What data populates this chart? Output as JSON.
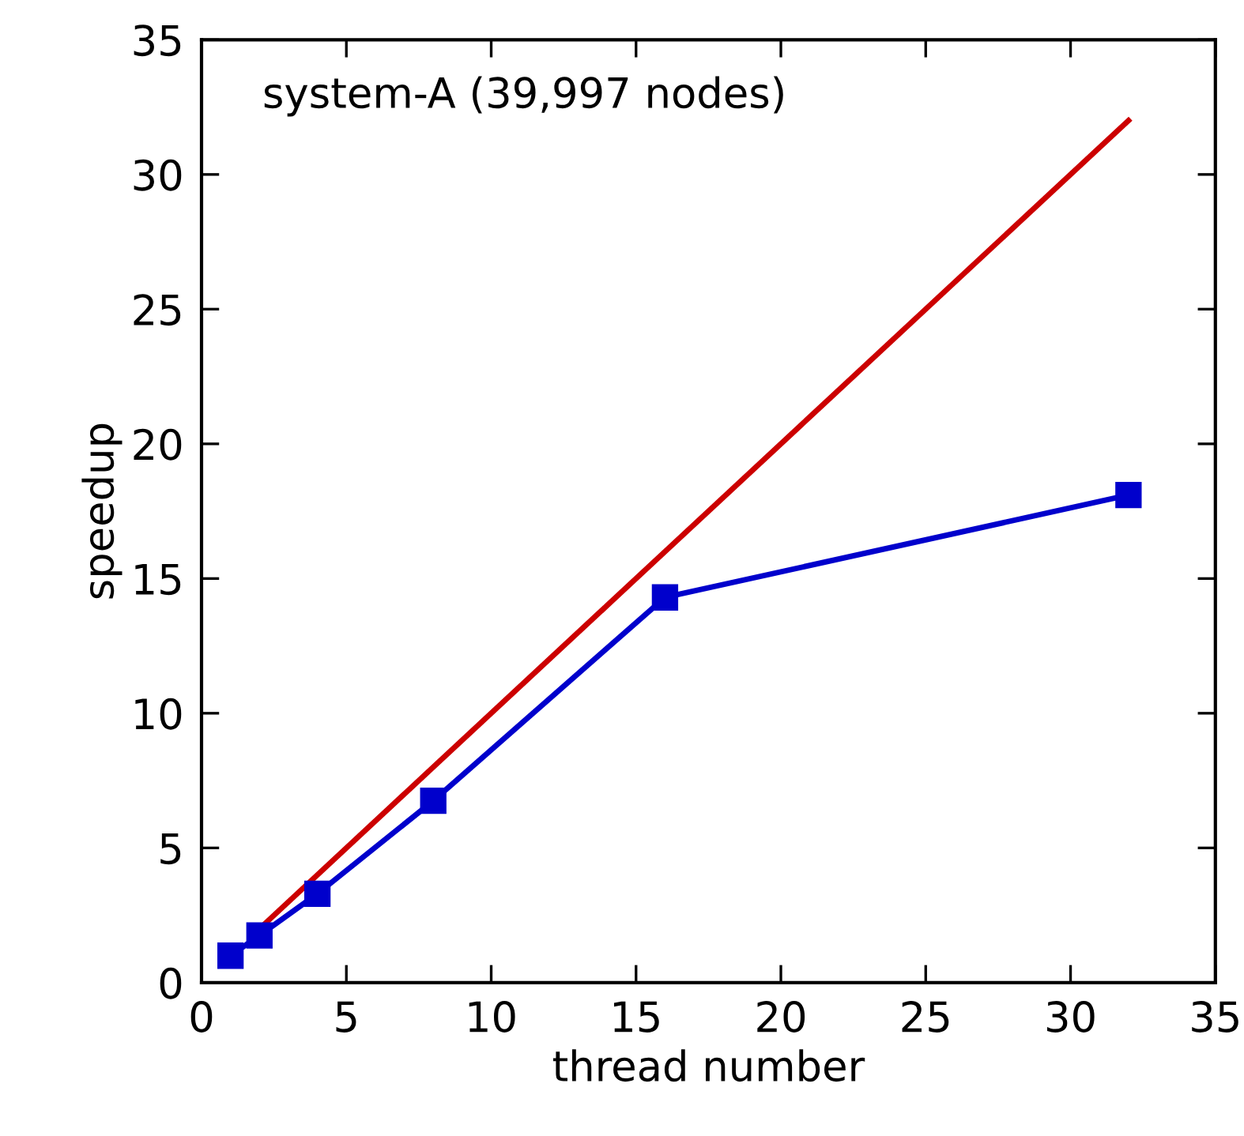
{
  "chart_data": {
    "type": "line",
    "xlabel": "thread number",
    "ylabel": "speedup",
    "annotations": [
      "system-A (39,997 nodes)"
    ],
    "xlim": [
      0,
      35
    ],
    "ylim": [
      0,
      35
    ],
    "xticks": [
      0,
      5,
      10,
      15,
      20,
      25,
      30,
      35
    ],
    "yticks": [
      0,
      5,
      10,
      15,
      20,
      25,
      30,
      35
    ],
    "grid": false,
    "legend": false,
    "series": [
      {
        "color": "#cc0000",
        "x": [
          2,
          4,
          8,
          16,
          32
        ],
        "values": [
          2,
          4,
          8,
          16,
          32
        ],
        "marker": "none"
      },
      {
        "color": "#0000cc",
        "x": [
          1,
          2,
          4,
          8,
          16,
          32
        ],
        "values": [
          1.0,
          1.75,
          3.3,
          6.75,
          14.3,
          18.1
        ],
        "marker": "square"
      }
    ]
  }
}
